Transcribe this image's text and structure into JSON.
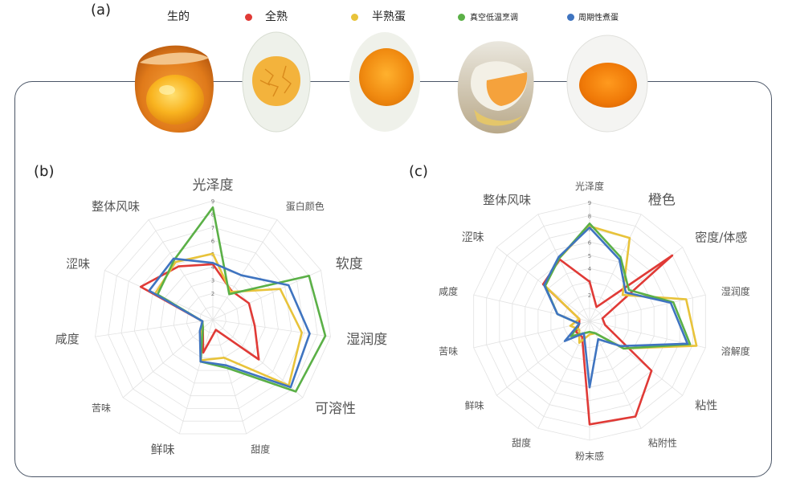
{
  "panels": {
    "a": "(a)",
    "b": "(b)",
    "c": "(c)"
  },
  "colors": {
    "raw": "none",
    "full": "#e03a36",
    "half": "#e8c33a",
    "sousvide": "#5bb047",
    "periodic": "#3f74c0"
  },
  "legend": [
    {
      "label": "生的",
      "color": ""
    },
    {
      "label": "全熟",
      "color": "#e03a36"
    },
    {
      "label": "半熟蛋",
      "color": "#e8c33a"
    },
    {
      "label": "真空低温烹调",
      "color": "#5bb047"
    },
    {
      "label": "周期性煮蛋",
      "color": "#3f74c0"
    }
  ],
  "eggs": [
    {
      "name": "raw-egg-photo"
    },
    {
      "name": "hard-boiled-egg-photo"
    },
    {
      "name": "soft-boiled-egg-photo"
    },
    {
      "name": "sous-vide-egg-photo"
    },
    {
      "name": "periodic-cooked-egg-photo"
    }
  ],
  "chart_data": [
    {
      "type": "radar",
      "panel": "(b)",
      "axes": [
        "光泽度",
        "蛋白颜色",
        "软度",
        "湿润度",
        "可溶性",
        "甜度",
        "鲜味",
        "苦味",
        "咸度",
        "涩味",
        "整体风味"
      ],
      "ticks": [
        "2",
        "3",
        "4",
        "5",
        "6",
        "7",
        "8",
        "9"
      ],
      "range": [
        0,
        9
      ],
      "series": [
        {
          "color": "#e03a36",
          "values": [
            4.2,
            2.6,
            3.0,
            3.2,
            4.6,
            0.8,
            2.6,
            1.0,
            0.8,
            6.0,
            4.8
          ]
        },
        {
          "color": "#e8c33a",
          "values": [
            5.0,
            2.5,
            5.6,
            6.8,
            7.6,
            3.0,
            3.2,
            1.2,
            0.8,
            4.8,
            5.2
          ]
        },
        {
          "color": "#5bb047",
          "values": [
            8.5,
            2.3,
            8.0,
            8.6,
            8.3,
            3.8,
            3.3,
            1.0,
            0.8,
            4.6,
            5.4
          ]
        },
        {
          "color": "#3f74c0",
          "values": [
            4.3,
            4.0,
            6.3,
            7.4,
            7.8,
            3.6,
            3.3,
            1.3,
            0.8,
            5.3,
            5.5
          ]
        }
      ]
    },
    {
      "type": "radar",
      "panel": "(c)",
      "axes": [
        "光泽度",
        "橙色",
        "密度/体感",
        "湿润度",
        "溶解度",
        "粘性",
        "粘附性",
        "粉末感",
        "甜度",
        "鲜味",
        "苦味",
        "咸度",
        "涩味",
        "整体风味"
      ],
      "ticks": [
        "2",
        "3",
        "4",
        "5",
        "6",
        "7",
        "8",
        "9"
      ],
      "range": [
        0,
        9
      ],
      "series": [
        {
          "color": "#e03a36",
          "values": [
            3.0,
            1.2,
            8.0,
            1.0,
            1.2,
            6.0,
            8.0,
            7.8,
            1.3,
            1.3,
            0.8,
            0.8,
            4.5,
            5.2
          ]
        },
        {
          "color": "#e8c33a",
          "values": [
            7.2,
            7.0,
            3.2,
            7.5,
            8.3,
            3.3,
            1.0,
            1.0,
            1.8,
            1.0,
            1.5,
            0.8,
            4.3,
            5.3
          ]
        },
        {
          "color": "#5bb047",
          "values": [
            7.4,
            5.4,
            3.8,
            6.5,
            7.8,
            3.3,
            1.0,
            0.8,
            1.0,
            1.8,
            0.8,
            2.5,
            4.3,
            5.3
          ]
        },
        {
          "color": "#3f74c0",
          "values": [
            7.1,
            5.2,
            3.5,
            6.3,
            7.6,
            3.0,
            1.5,
            5.0,
            1.0,
            2.4,
            0.8,
            2.5,
            4.4,
            5.4
          ]
        }
      ]
    }
  ]
}
